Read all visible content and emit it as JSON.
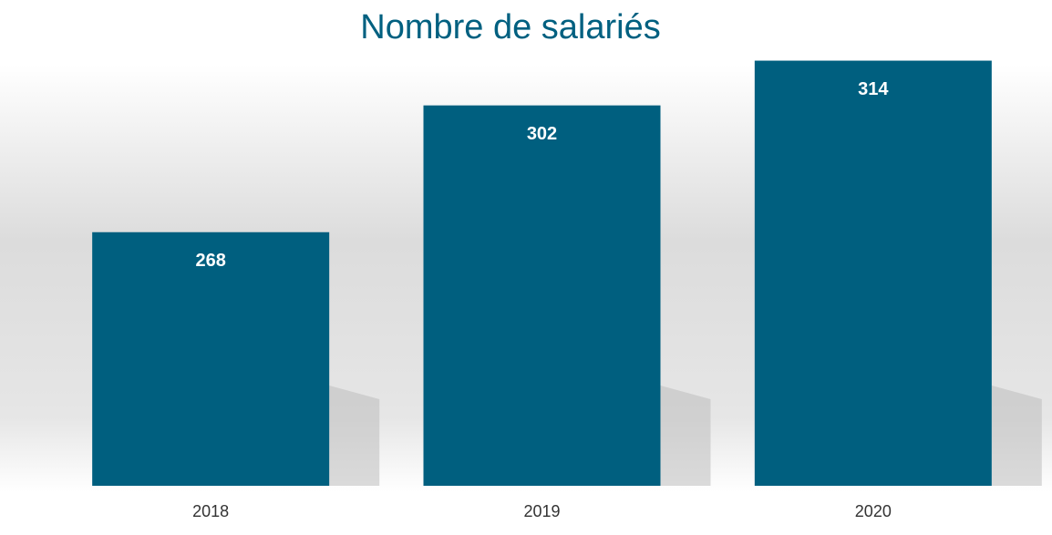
{
  "chart_data": {
    "type": "bar",
    "title": "Nombre de salariés",
    "categories": [
      "2018",
      "2019",
      "2020"
    ],
    "values": [
      268,
      302,
      314
    ],
    "color": "#005f7f",
    "ylim": [
      200,
      320
    ]
  }
}
